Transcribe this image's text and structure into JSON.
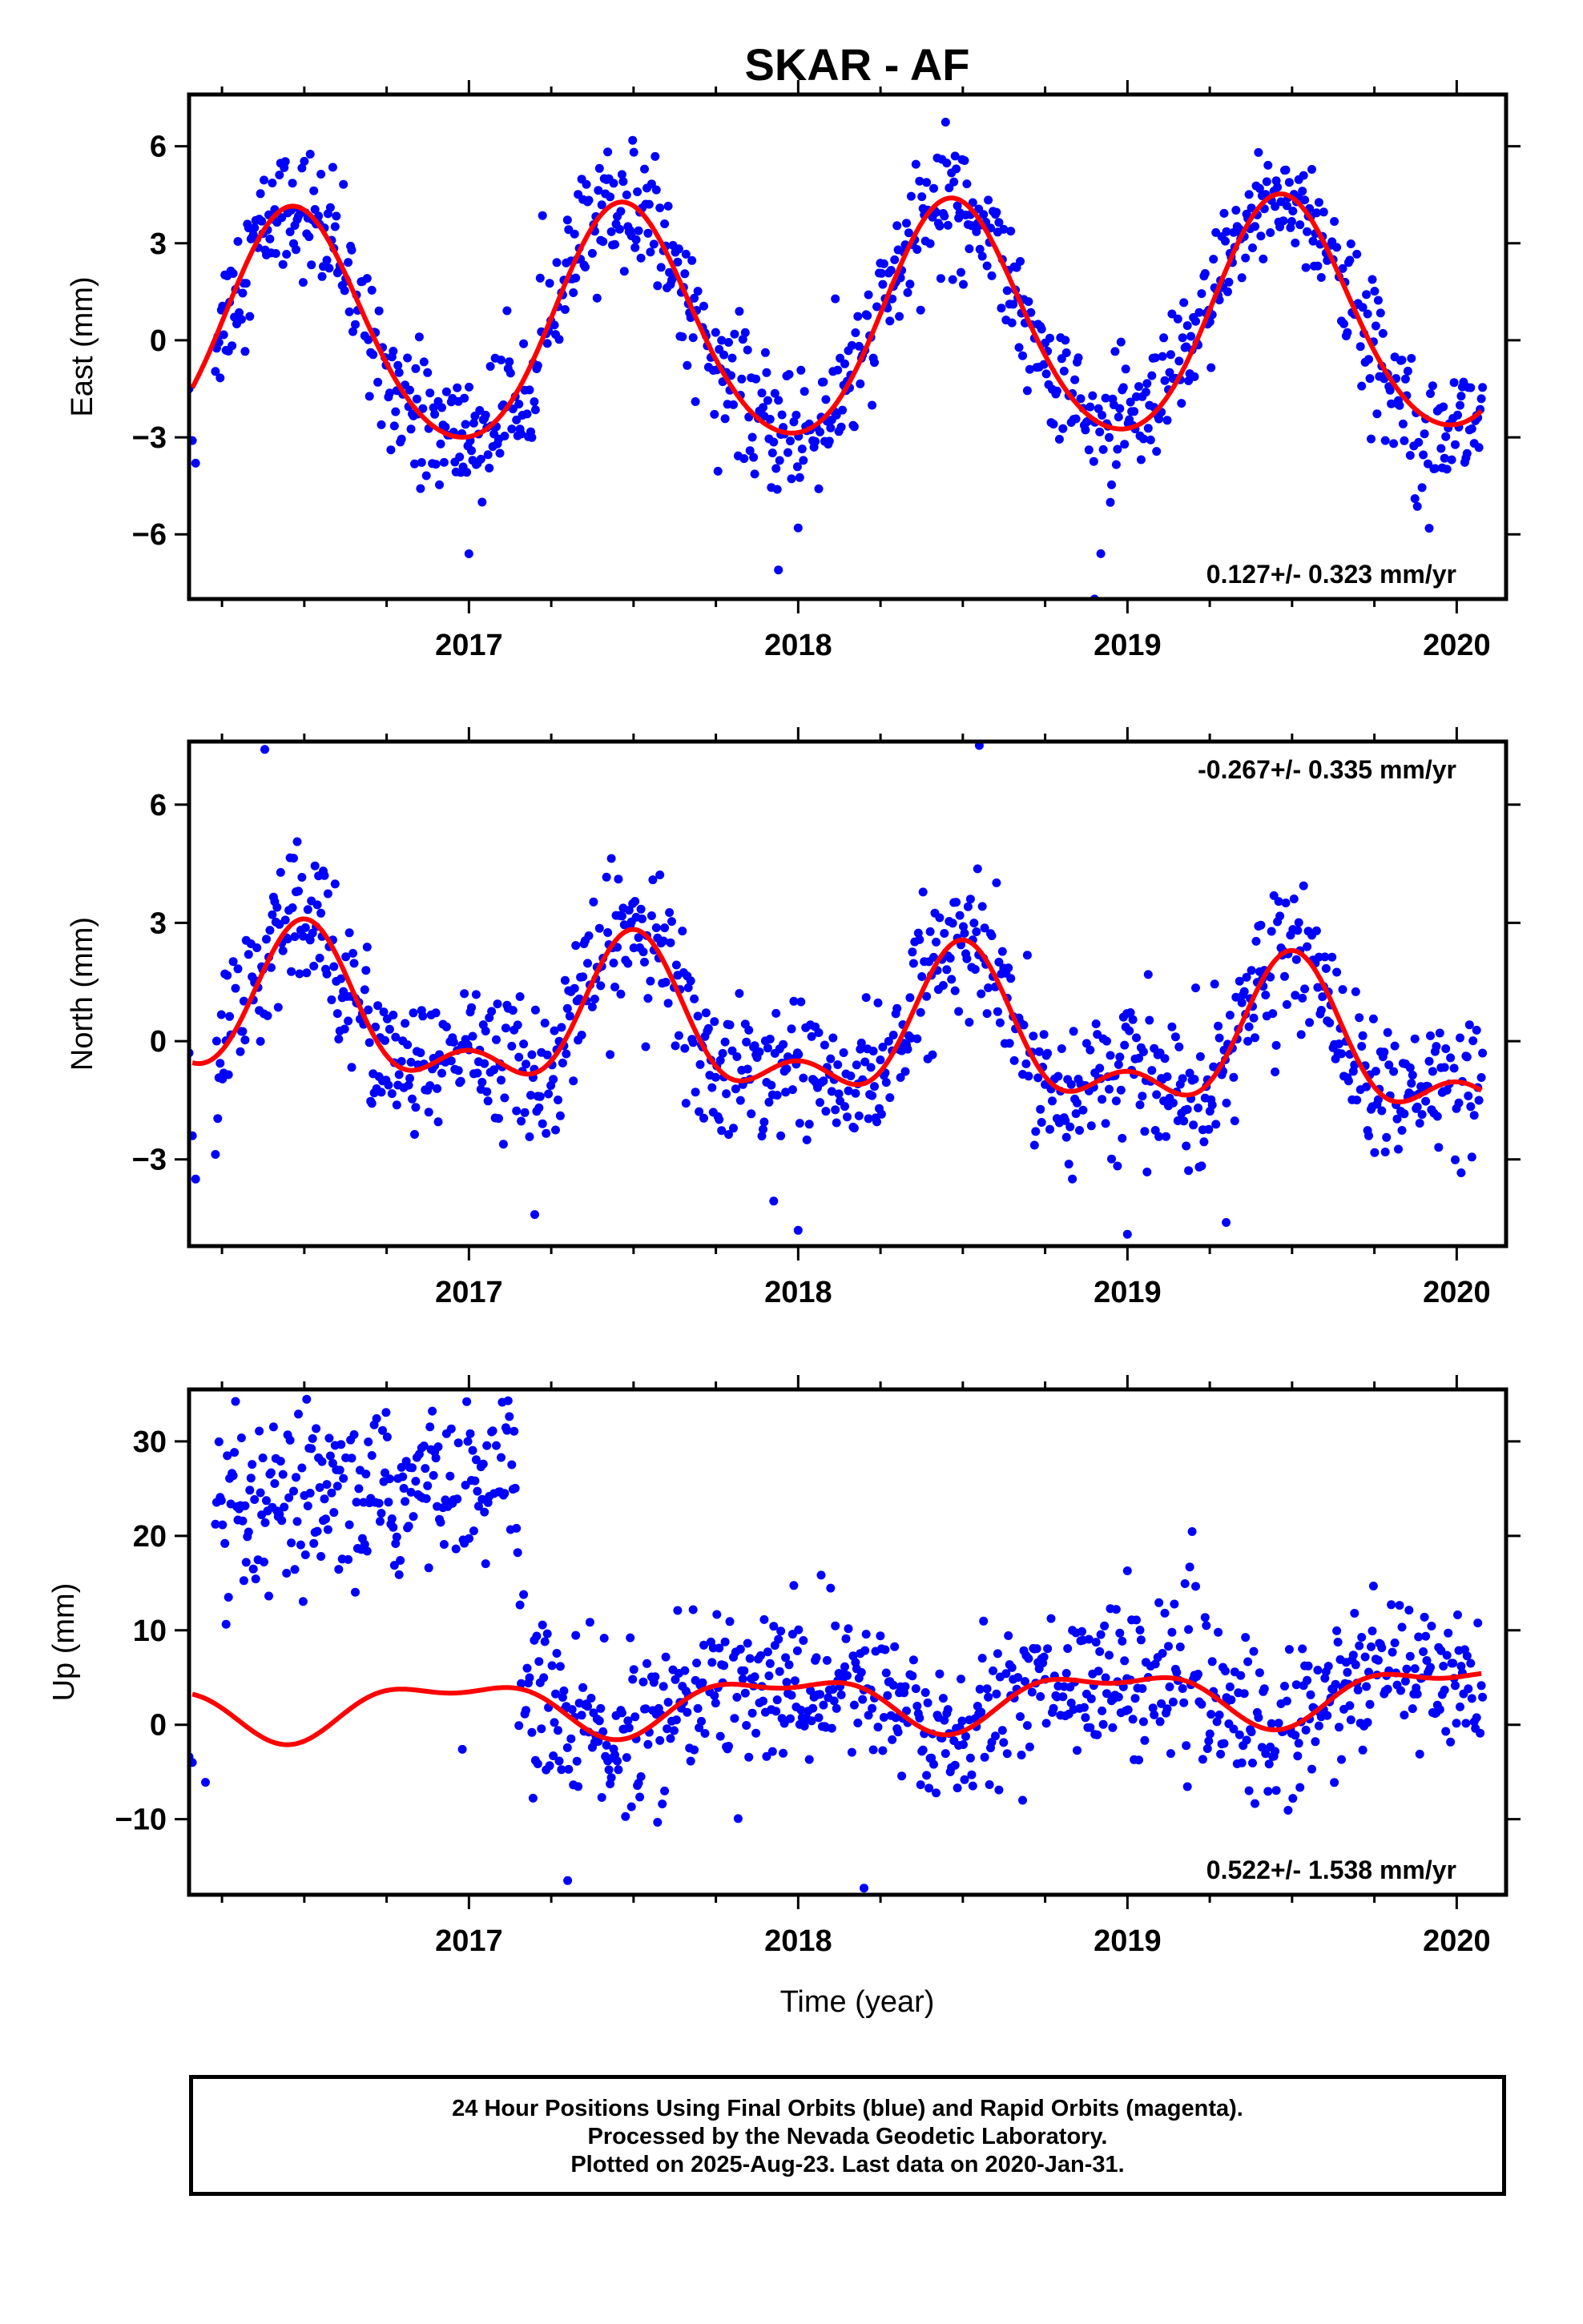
{
  "chart_data": {
    "type": "scatter",
    "title": "SKAR - AF",
    "xlabel": "Time (year)",
    "x_tick_labels": [
      "2017",
      "2018",
      "2019",
      "2020"
    ],
    "xlim": [
      2016.15,
      2020.15
    ],
    "data_span": [
      2016.23,
      2020.08
    ],
    "colors": {
      "data": "#0000ff",
      "fit": "#ff0000",
      "frame": "#000000"
    },
    "panels": [
      {
        "name": "east",
        "ylabel": "East (mm)",
        "ylim": [
          -8,
          7.6
        ],
        "yticks": [
          -6,
          -3,
          0,
          3,
          6
        ],
        "yticks_labels": [
          "−6",
          "−3",
          "0",
          "3",
          "6"
        ],
        "rate_label": "0.127+/- 0.323 mm/yr",
        "rate_position": "bottom-right",
        "trend_mm_per_yr": 0.127,
        "fit": {
          "offset": 0.4,
          "annual_amp": 3.6,
          "annual_phase_year": 0.47,
          "semi_amp": 0.35,
          "semi_phase_year": 0.45,
          "steps": []
        },
        "noise_sd": 1.0,
        "outliers": [
          [
            2016.15,
            -1.5
          ],
          [
            2016.16,
            -3.1
          ],
          [
            2016.17,
            -3.8
          ],
          [
            2017.0,
            -6.6
          ],
          [
            2017.94,
            -7.1
          ],
          [
            2018.0,
            -5.8
          ],
          [
            2018.9,
            -8.0
          ]
        ]
      },
      {
        "name": "north",
        "ylabel": "North (mm)",
        "ylim": [
          -5.2,
          7.6
        ],
        "yticks": [
          -3,
          0,
          3,
          6
        ],
        "yticks_labels": [
          "−3",
          "0",
          "3",
          "6"
        ],
        "rate_label": "-0.267+/- 0.335 mm/yr",
        "rate_position": "top-right",
        "trend_mm_per_yr": -0.267,
        "fit": {
          "offset": 0.2,
          "annual_amp": 1.6,
          "annual_phase_year": 0.5,
          "semi_amp": 0.9,
          "semi_phase_year": 0.5,
          "steps": []
        },
        "noise_sd": 0.9,
        "outliers": [
          [
            2016.15,
            -0.3
          ],
          [
            2016.16,
            -2.4
          ],
          [
            2016.17,
            -3.5
          ],
          [
            2016.38,
            7.4
          ],
          [
            2017.2,
            -4.4
          ],
          [
            2018.55,
            7.5
          ],
          [
            2019.0,
            -4.9
          ],
          [
            2019.3,
            -4.6
          ],
          [
            2018.0,
            -4.8
          ]
        ]
      },
      {
        "name": "up",
        "ylabel": "Up (mm)",
        "ylim": [
          -18,
          35.5
        ],
        "yticks": [
          -10,
          0,
          10,
          20,
          30
        ],
        "yticks_labels": [
          "−10",
          "0",
          "10",
          "20",
          "30"
        ],
        "rate_label": "0.522+/- 1.538 mm/yr",
        "rate_position": "bottom-right",
        "trend_mm_per_yr": 0.522,
        "fit": {
          "offset": 2.5,
          "annual_amp": 2.6,
          "annual_phase_year": 0.95,
          "semi_amp": 1.2,
          "semi_phase_year": 0.2,
          "steps": []
        },
        "noise_sd": 4.2,
        "early_offset_block": {
          "from": 2016.23,
          "to": 2017.15,
          "mean": 21,
          "trend_mm_per_yr": 6,
          "sd": 4.5
        },
        "outliers": [
          [
            2016.15,
            -3.4
          ],
          [
            2016.16,
            -4.0
          ],
          [
            2016.2,
            -6.1
          ],
          [
            2016.98,
            -2.6
          ],
          [
            2019.0,
            16.3
          ],
          [
            2018.2,
            -17.3
          ],
          [
            2017.3,
            -16.5
          ]
        ]
      }
    ],
    "legend": "none"
  },
  "footer": {
    "line1": "24 Hour Positions Using Final Orbits (blue) and Rapid Orbits (magenta).",
    "line2": "Processed by the Nevada Geodetic Laboratory.",
    "line3": "Plotted on 2025-Aug-23. Last data on 2020-Jan-31."
  }
}
